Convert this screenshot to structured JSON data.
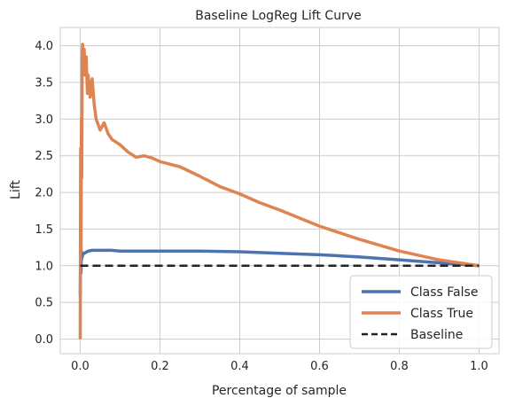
{
  "chart_data": {
    "type": "line",
    "title": "Baseline LogReg Lift Curve",
    "xlabel": "Percentage of sample",
    "ylabel": "Lift",
    "xlim": [
      -0.05,
      1.05
    ],
    "ylim": [
      -0.2,
      4.25
    ],
    "xticks": [
      0.0,
      0.2,
      0.4,
      0.6,
      0.8,
      1.0
    ],
    "xtick_labels": [
      "0.0",
      "0.2",
      "0.4",
      "0.6",
      "0.8",
      "1.0"
    ],
    "yticks": [
      0.0,
      0.5,
      1.0,
      1.5,
      2.0,
      2.5,
      3.0,
      3.5,
      4.0
    ],
    "ytick_labels": [
      "0.0",
      "0.5",
      "1.0",
      "1.5",
      "2.0",
      "2.5",
      "3.0",
      "3.5",
      "4.0"
    ],
    "grid": true,
    "legend_position": "lower-right",
    "series": [
      {
        "name": "Class False",
        "color": "#4c72b0",
        "style": "solid",
        "x": [
          0.0,
          0.001,
          0.002,
          0.003,
          0.004,
          0.006,
          0.01,
          0.02,
          0.03,
          0.05,
          0.08,
          0.1,
          0.15,
          0.2,
          0.3,
          0.4,
          0.5,
          0.6,
          0.7,
          0.8,
          0.9,
          1.0
        ],
        "y": [
          0.6,
          1.3,
          0.9,
          1.2,
          1.1,
          1.15,
          1.17,
          1.2,
          1.21,
          1.21,
          1.21,
          1.2,
          1.2,
          1.2,
          1.2,
          1.19,
          1.17,
          1.15,
          1.12,
          1.08,
          1.04,
          1.0
        ]
      },
      {
        "name": "Class True",
        "color": "#dd8452",
        "style": "solid",
        "x": [
          0.0,
          0.001,
          0.002,
          0.003,
          0.004,
          0.005,
          0.006,
          0.008,
          0.01,
          0.012,
          0.015,
          0.018,
          0.02,
          0.025,
          0.03,
          0.035,
          0.04,
          0.05,
          0.06,
          0.07,
          0.08,
          0.1,
          0.12,
          0.14,
          0.16,
          0.18,
          0.2,
          0.25,
          0.3,
          0.35,
          0.4,
          0.45,
          0.5,
          0.55,
          0.6,
          0.65,
          0.7,
          0.75,
          0.8,
          0.85,
          0.9,
          0.95,
          1.0
        ],
        "y": [
          0.0,
          2.6,
          1.2,
          3.0,
          2.2,
          3.9,
          4.02,
          3.7,
          3.95,
          3.6,
          3.85,
          3.35,
          3.6,
          3.3,
          3.55,
          3.2,
          3.0,
          2.85,
          2.95,
          2.8,
          2.72,
          2.65,
          2.55,
          2.48,
          2.5,
          2.47,
          2.42,
          2.35,
          2.22,
          2.08,
          1.98,
          1.86,
          1.76,
          1.65,
          1.54,
          1.45,
          1.36,
          1.28,
          1.2,
          1.14,
          1.08,
          1.04,
          1.0
        ]
      },
      {
        "name": "Baseline",
        "color": "#222222",
        "style": "dashed",
        "x": [
          0.0,
          1.0
        ],
        "y": [
          1.0,
          1.0
        ]
      }
    ]
  }
}
